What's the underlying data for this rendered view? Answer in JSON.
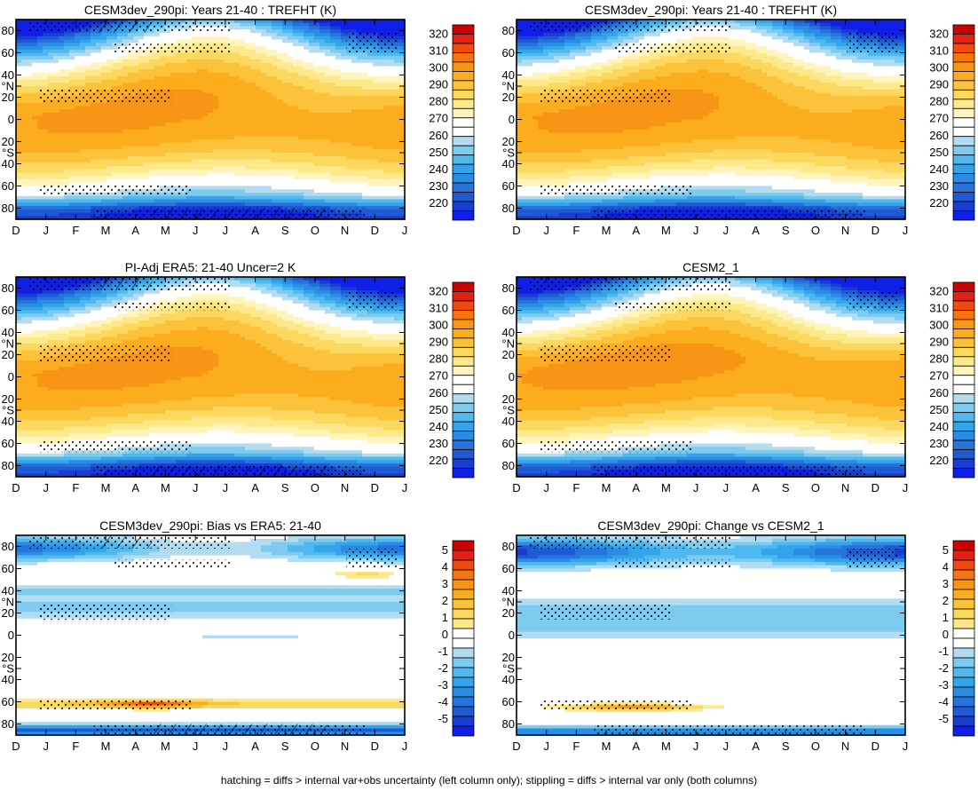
{
  "caption": "hatching = diffs > internal var+obs uncertainty (left column only); stippling = diffs > internal var only (both columns)",
  "months": [
    "D",
    "J",
    "F",
    "M",
    "A",
    "M",
    "J",
    "J",
    "A",
    "S",
    "O",
    "N",
    "D",
    "J"
  ],
  "lat_ticks": [
    "80",
    "60",
    "40",
    "°N",
    "20",
    "0",
    "20",
    "°S",
    "40",
    "60",
    "80"
  ],
  "lat_tick_values": [
    80,
    60,
    40,
    30,
    20,
    0,
    -20,
    -30,
    -40,
    -60,
    -80
  ],
  "abs_scale": {
    "levels": [
      "320",
      "310",
      "300",
      "290",
      "280",
      "270",
      "260",
      "250",
      "240",
      "230",
      "220"
    ],
    "colors": [
      "#cc0000",
      "#e42010",
      "#f04a10",
      "#f77410",
      "#f99515",
      "#fbad1e",
      "#fcc33a",
      "#fdd85e",
      "#fee98a",
      "#fff5bc",
      "#ffffff",
      "#ffffff",
      "#b3dcf0",
      "#7ecbf0",
      "#4fb8ee",
      "#33a4ea",
      "#2a8de3",
      "#2574dc",
      "#1e5ad5",
      "#183dd0",
      "#0f1fe8"
    ]
  },
  "diff_scale": {
    "levels": [
      "5",
      "4",
      "3",
      "2",
      "1",
      "0",
      "-1",
      "-2",
      "-3",
      "-4",
      "-5"
    ],
    "colors": [
      "#cc0000",
      "#e42010",
      "#f04a10",
      "#f77410",
      "#f99515",
      "#fbad1e",
      "#fcc33a",
      "#fdd85e",
      "#fee98a",
      "#ffffff",
      "#ffffff",
      "#b3dcf0",
      "#7ecbf0",
      "#4fb8ee",
      "#33a4ea",
      "#2a8de3",
      "#2574dc",
      "#1e5ad5",
      "#183dd0",
      "#0f1fe8"
    ]
  },
  "chart_data": [
    {
      "type": "heatmap",
      "title": "CESM3dev_290pi: Years 21-40 : TREFHT (K)",
      "xlabel": "",
      "ylabel": "",
      "x": [
        "D",
        "J",
        "F",
        "M",
        "A",
        "M",
        "J",
        "J",
        "A",
        "S",
        "O",
        "N",
        "D",
        "J"
      ],
      "y_range": [
        -90,
        90
      ],
      "color_range": [
        215,
        325
      ],
      "hatching": true,
      "stippling": true
    },
    {
      "type": "heatmap",
      "title": "CESM3dev_290pi: Years 21-40 : TREFHT (K)",
      "xlabel": "",
      "ylabel": "",
      "x": [
        "D",
        "J",
        "F",
        "M",
        "A",
        "M",
        "J",
        "J",
        "A",
        "S",
        "O",
        "N",
        "D",
        "J"
      ],
      "y_range": [
        -90,
        90
      ],
      "color_range": [
        215,
        325
      ],
      "hatching": false,
      "stippling": true
    },
    {
      "type": "heatmap",
      "title": "PI-Adj ERA5: 21-40 Uncer=2 K",
      "xlabel": "",
      "ylabel": "",
      "x": [
        "D",
        "J",
        "F",
        "M",
        "A",
        "M",
        "J",
        "J",
        "A",
        "S",
        "O",
        "N",
        "D",
        "J"
      ],
      "y_range": [
        -90,
        90
      ],
      "color_range": [
        215,
        325
      ],
      "hatching": true,
      "stippling": true
    },
    {
      "type": "heatmap",
      "title": "CESM2_1",
      "xlabel": "",
      "ylabel": "",
      "x": [
        "D",
        "J",
        "F",
        "M",
        "A",
        "M",
        "J",
        "J",
        "A",
        "S",
        "O",
        "N",
        "D",
        "J"
      ],
      "y_range": [
        -90,
        90
      ],
      "color_range": [
        215,
        325
      ],
      "hatching": false,
      "stippling": true
    },
    {
      "type": "heatmap",
      "title": "CESM3dev_290pi: Bias vs ERA5: 21-40",
      "xlabel": "",
      "ylabel": "",
      "x": [
        "D",
        "J",
        "F",
        "M",
        "A",
        "M",
        "J",
        "J",
        "A",
        "S",
        "O",
        "N",
        "D",
        "J"
      ],
      "y_range": [
        -90,
        90
      ],
      "color_range": [
        -5.5,
        5.5
      ],
      "hatching": true,
      "stippling": true
    },
    {
      "type": "heatmap",
      "title": "CESM3dev_290pi: Change vs CESM2_1",
      "xlabel": "",
      "ylabel": "",
      "x": [
        "D",
        "J",
        "F",
        "M",
        "A",
        "M",
        "J",
        "J",
        "A",
        "S",
        "O",
        "N",
        "D",
        "J"
      ],
      "y_range": [
        -90,
        90
      ],
      "color_range": [
        -5.5,
        5.5
      ],
      "hatching": false,
      "stippling": true
    }
  ]
}
